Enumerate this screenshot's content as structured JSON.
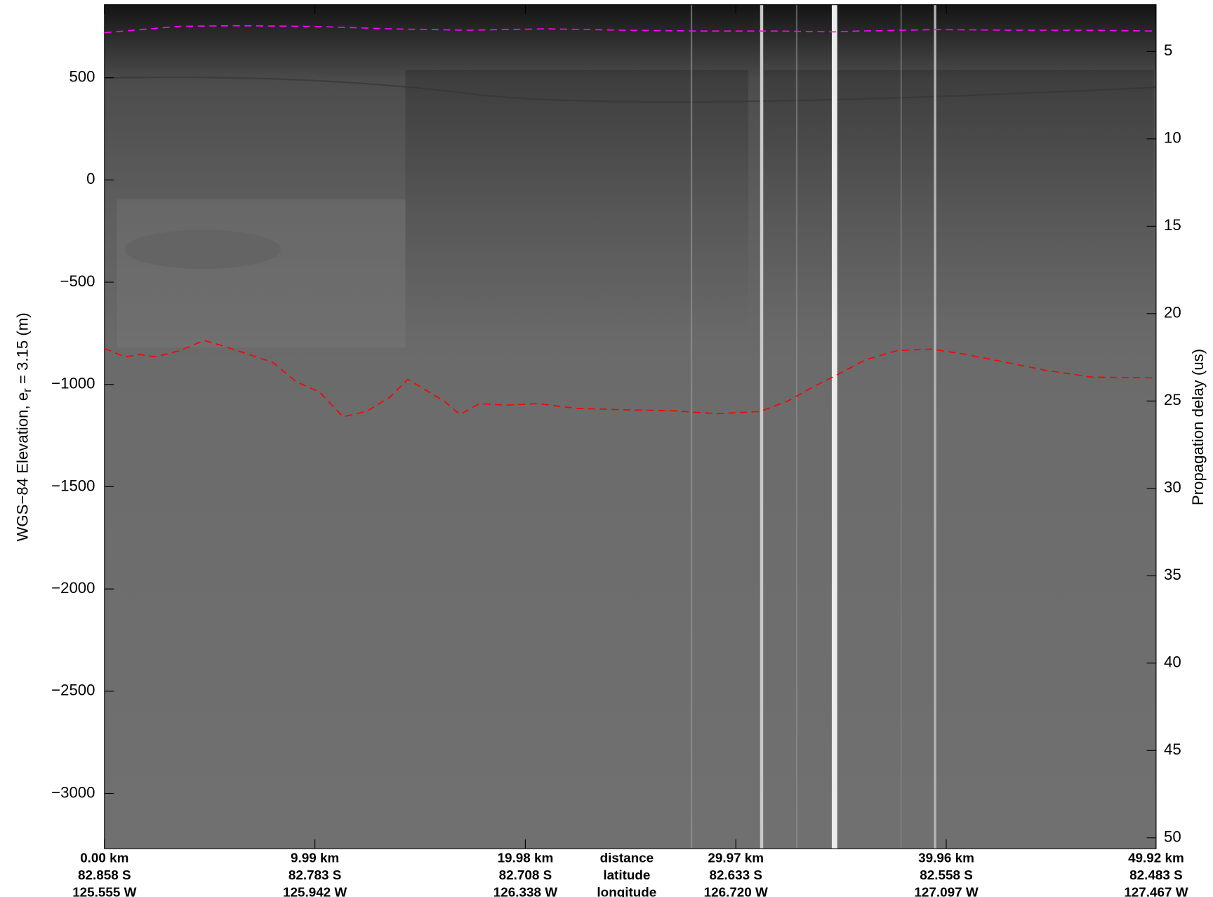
{
  "chart_data": {
    "type": "line",
    "ylabel_parts": [
      "WGS−84 Elevation, e",
      "r",
      " = 3.15 (m)"
    ],
    "y2label": "Propagation delay (us)",
    "xlim": [
      0,
      49.92
    ],
    "ylim": [
      -3270,
      857
    ],
    "y2lim": [
      50.62,
      2.32
    ],
    "xticks": [
      {
        "value": 0,
        "label": "0.00 km"
      },
      {
        "value": 9.99,
        "label": "9.99 km"
      },
      {
        "value": 19.98,
        "label": "19.98 km"
      },
      {
        "value": 29.97,
        "label": "29.97 km"
      },
      {
        "value": 39.96,
        "label": "39.96 km"
      },
      {
        "value": 49.92,
        "label": "49.92 km"
      }
    ],
    "xtick_latitudes": [
      "82.858 S",
      "82.783 S",
      "82.708 S",
      "82.633 S",
      "82.558 S",
      "82.483 S"
    ],
    "xtick_longitudes": [
      "125.555 W",
      "125.942 W",
      "126.338 W",
      "126.720 W",
      "127.097 W",
      "127.467 W"
    ],
    "xtick_row_names": [
      "distance",
      "latitude",
      "longitude"
    ],
    "yticks": [
      500,
      0,
      {
        "value": -500,
        "label": "−500"
      },
      {
        "value": -1000,
        "label": "−1000"
      },
      {
        "value": -1500,
        "label": "−1500"
      },
      {
        "value": -2000,
        "label": "−2000"
      },
      {
        "value": -2500,
        "label": "−2500"
      },
      {
        "value": -3000,
        "label": "−3000"
      }
    ],
    "y2ticks": [
      5,
      10,
      15,
      20,
      25,
      30,
      35,
      40,
      45,
      50
    ],
    "series": [
      {
        "color": "#ff00ff",
        "x": [
          0,
          3.55,
          6.14,
          9.84,
          13.54,
          17.24,
          20.95,
          24.65,
          28.35,
          32.05,
          34.64,
          35.75,
          39.45,
          43.16,
          46.86,
          49.92
        ],
        "values": [
          720,
          751,
          754,
          751,
          739,
          732,
          739,
          732,
          728,
          728,
          724,
          728,
          735,
          732,
          732,
          728
        ]
      },
      {
        "color": "#ff0000",
        "x": [
          0,
          0.96,
          1.7,
          2.44,
          3.55,
          4.74,
          5.77,
          6.88,
          7.99,
          9.1,
          10.21,
          11.32,
          12.43,
          13.54,
          14.4,
          15.21,
          16.13,
          16.87,
          17.8,
          19.1,
          20.58,
          22.43,
          24.65,
          26.87,
          29.09,
          31.12,
          32.42,
          33.53,
          34.64,
          36.12,
          37.6,
          39.27,
          40.94,
          42.79,
          44.64,
          46.86,
          49.92
        ],
        "values": [
          -823,
          -865,
          -854,
          -865,
          -835,
          -785,
          -816,
          -854,
          -892,
          -987,
          -1037,
          -1158,
          -1132,
          -1063,
          -975,
          -1025,
          -1082,
          -1147,
          -1094,
          -1101,
          -1094,
          -1117,
          -1124,
          -1128,
          -1143,
          -1132,
          -1082,
          -1018,
          -960,
          -880,
          -835,
          -827,
          -854,
          -892,
          -930,
          -964,
          -968
        ]
      }
    ]
  }
}
